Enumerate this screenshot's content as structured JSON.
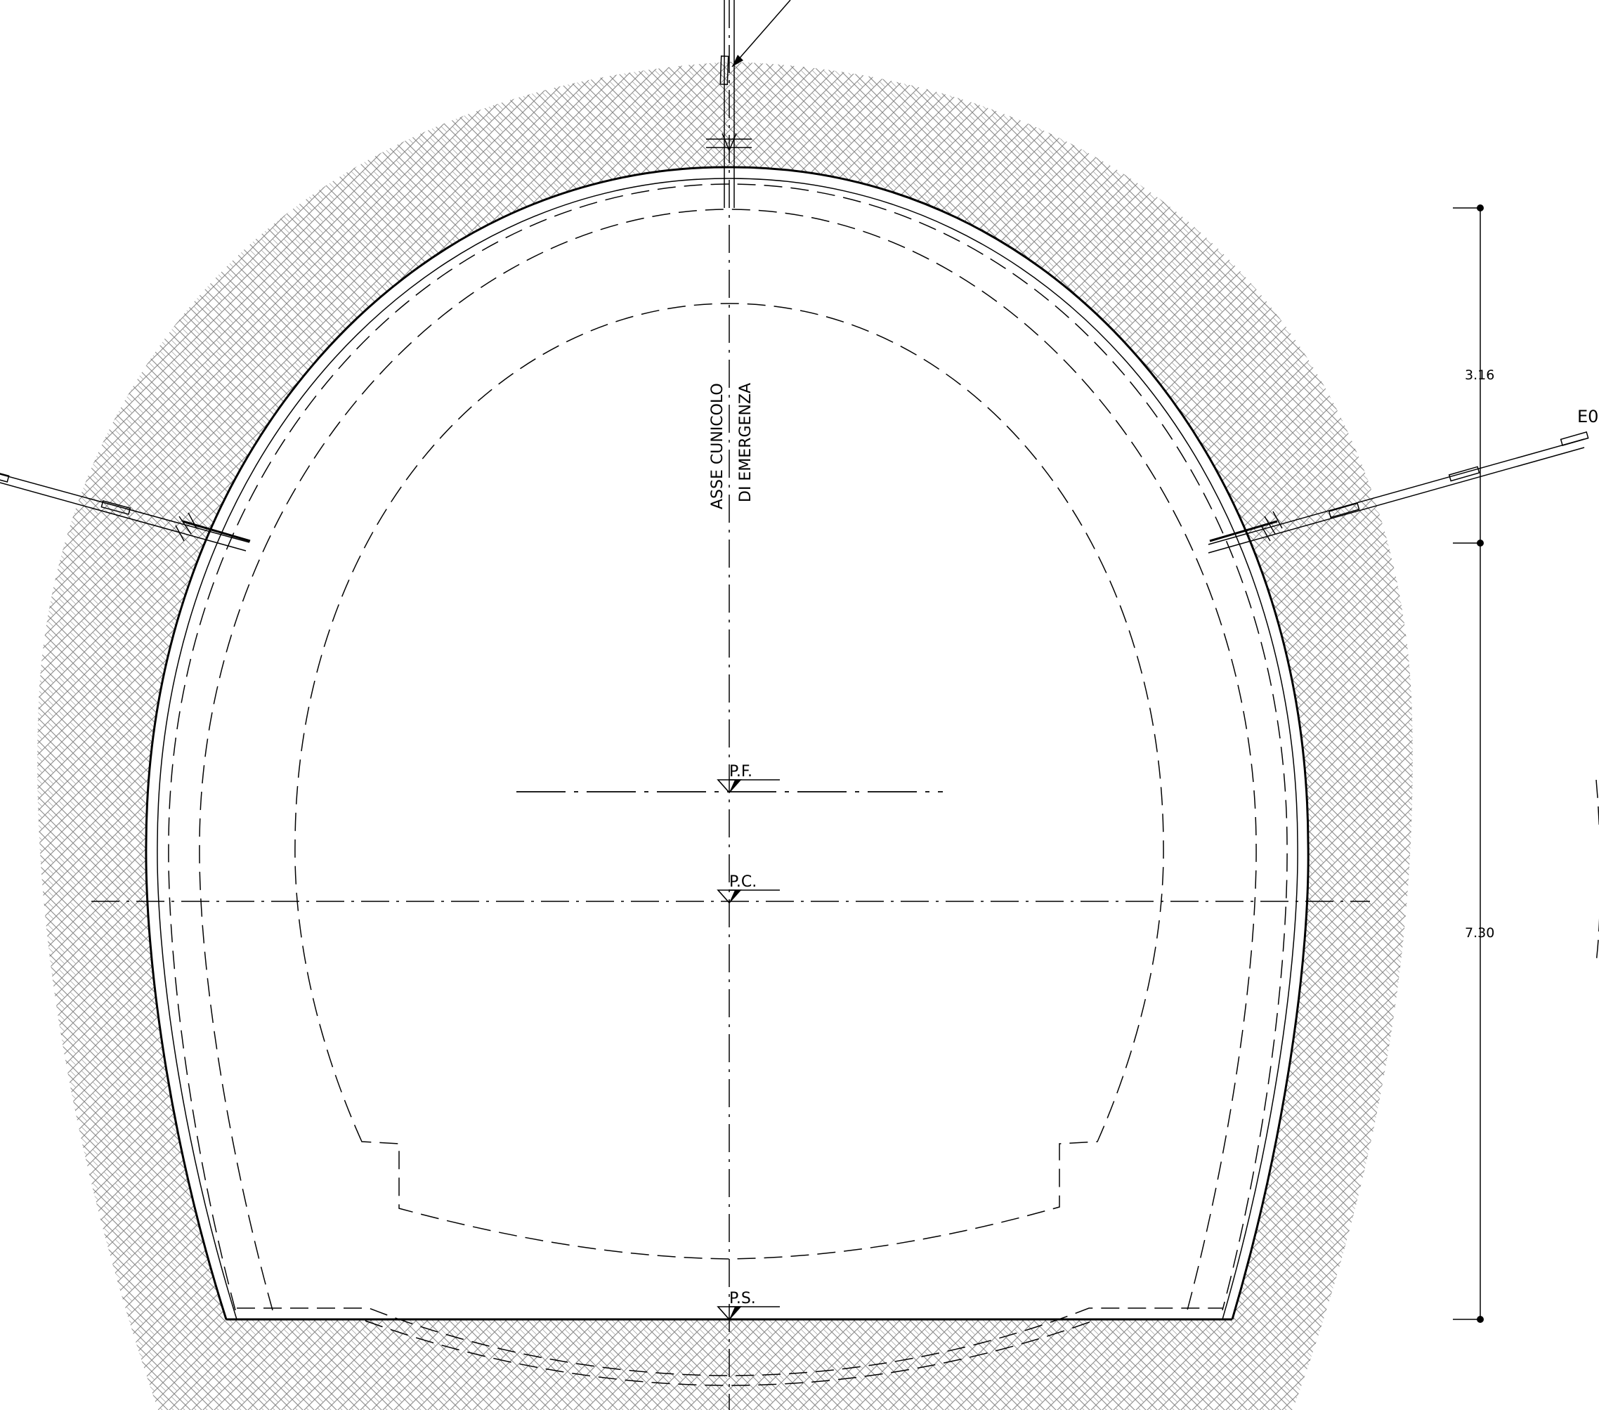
{
  "labels": {
    "axis_line1": "ASSE CUNICOLO",
    "axis_line2": "DI EMERGENZA",
    "level_pf": "P.F.",
    "level_pc": "P.C.",
    "level_ps": "P.S.",
    "dim_upper": "3.16",
    "dim_lower": "7.30",
    "cut_label": "E0"
  },
  "colors": {
    "line": "#000000",
    "hatch": "#8a8a8a",
    "background": "#ffffff"
  },
  "hatch_pattern": "herringbone-soil",
  "icons": [
    "level-marker-icon",
    "rock-bolt-icon",
    "dimension-dot-icon"
  ]
}
